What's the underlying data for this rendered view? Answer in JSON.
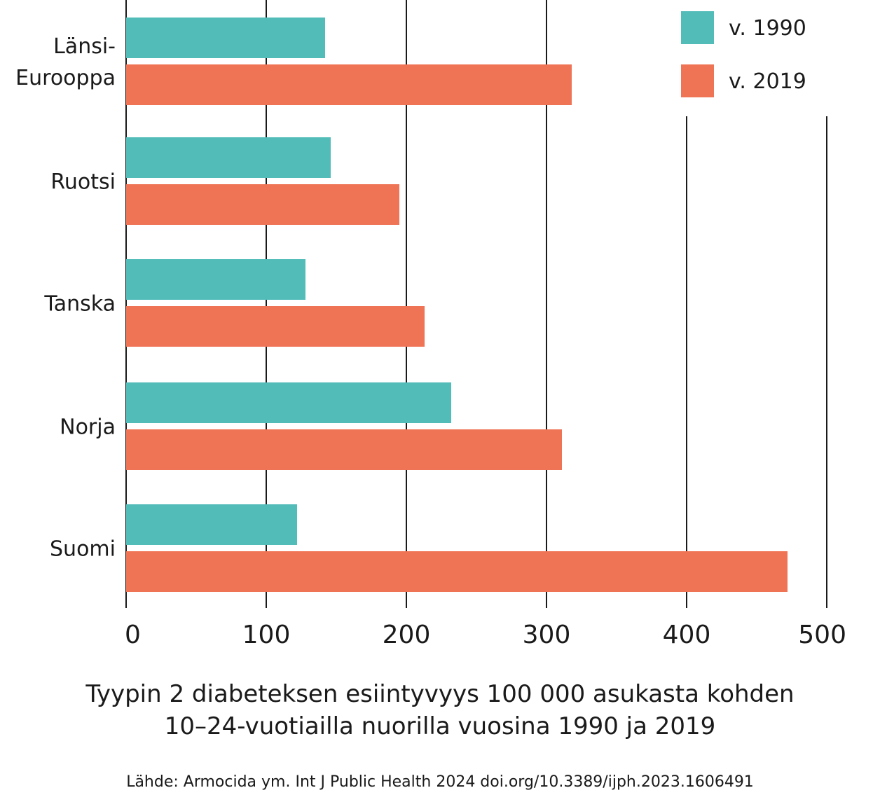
{
  "chart_data": {
    "type": "bar",
    "orientation": "horizontal",
    "categories": [
      "Länsi-Eurooppa",
      "Ruotsi",
      "Tanska",
      "Norja",
      "Suomi"
    ],
    "category_lines": [
      [
        "Länsi-",
        "Eurooppa"
      ],
      [
        "Ruotsi"
      ],
      [
        "Tanska"
      ],
      [
        "Norja"
      ],
      [
        "Suomi"
      ]
    ],
    "series": [
      {
        "name": "v. 1990",
        "color": "#52bcb9",
        "values": [
          142,
          146,
          128,
          232,
          122
        ]
      },
      {
        "name": "v. 2019",
        "color": "#ef7455",
        "values": [
          318,
          195,
          213,
          311,
          472
        ]
      }
    ],
    "xlim": [
      0,
      500
    ],
    "xticks": [
      0,
      100,
      200,
      300,
      400,
      500
    ],
    "xlabel_lines": [
      "Tyypin 2 diabeteksen esiintyvyys 100 000 asukasta kohden",
      "10–24-vuotiailla nuorilla vuosina 1990 ja 2019"
    ],
    "source": "Lähde: Armocida ym. Int J Public Health 2024 doi.org/10.3389/ijph.2023.1606491",
    "grid": "vertical",
    "legend_position": "top-right"
  }
}
